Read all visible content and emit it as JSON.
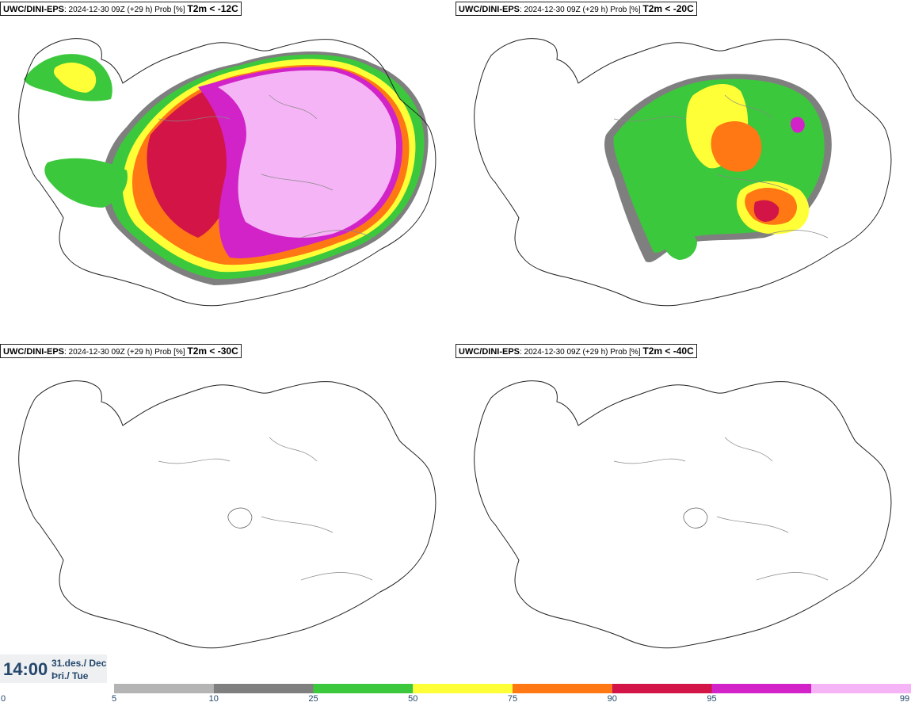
{
  "panels": [
    {
      "model": "UWC/DINI-EPS",
      "run": ": 2024-12-30 09Z (+29 h) Prob [%]",
      "variable": "T2m < -12C"
    },
    {
      "model": "UWC/DINI-EPS",
      "run": ": 2024-12-30 09Z (+29 h) Prob [%]",
      "variable": "T2m < -20C"
    },
    {
      "model": "UWC/DINI-EPS",
      "run": ": 2024-12-30 09Z (+29 h) Prob [%]",
      "variable": "T2m < -30C"
    },
    {
      "model": "UWC/DINI-EPS",
      "run": ": 2024-12-30 09Z (+29 h) Prob [%]",
      "variable": "T2m < -40C"
    }
  ],
  "valid_time": {
    "time": "14:00",
    "date": "31.des./ Dec",
    "weekday": "Þri./ Tue"
  },
  "colorbar": {
    "ticks": [
      "0",
      "5",
      "10",
      "25",
      "50",
      "75",
      "90",
      "95",
      "99"
    ],
    "colors": [
      "#b4b4b4",
      "#7f7f7f",
      "#3cc83c",
      "#ffff37",
      "#ff7814",
      "#d21446",
      "#d223c8",
      "#f5b4f5"
    ]
  }
}
